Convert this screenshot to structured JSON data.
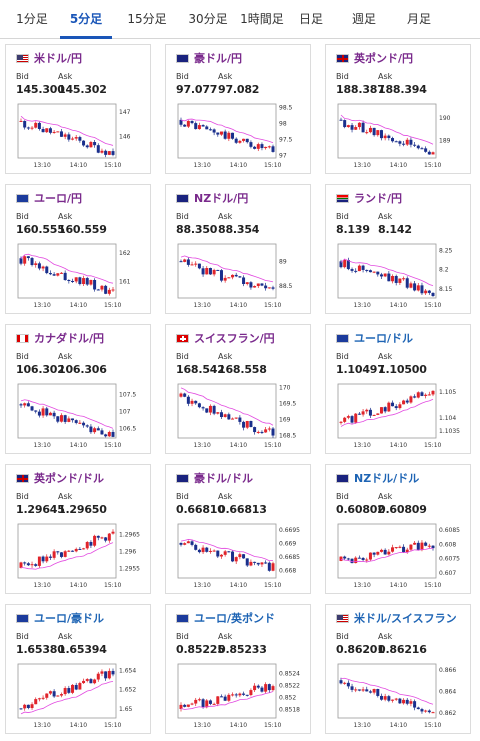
{
  "tabs": [
    {
      "label": "1分足",
      "active": false
    },
    {
      "label": "5分足",
      "active": true
    },
    {
      "label": "15分足",
      "active": false
    },
    {
      "label": "30分足",
      "active": false
    },
    {
      "label": "1時間足",
      "active": false
    },
    {
      "label": "日足",
      "active": false
    },
    {
      "label": "週足",
      "active": false
    },
    {
      "label": "月足",
      "active": false
    }
  ],
  "labels": {
    "bid": "Bid",
    "ask": "Ask"
  },
  "colors": {
    "up": "#e0242b",
    "down": "#1a2f8c",
    "ma": "#e24be0",
    "title_purple": "#7a2a8c",
    "title_blue": "#1e64b4",
    "active_tab": "#1a56b8"
  },
  "cards": [
    {
      "pair": "米ドル/円",
      "flag": "us",
      "bid": "145.300",
      "ask": "145.302",
      "y_ticks": [
        "147",
        "146"
      ],
      "x_ticks": [
        "13:10",
        "14:10",
        "15:10"
      ],
      "chart_data": {
        "type": "candlestick",
        "trend": "down",
        "ylim": [
          145.1,
          147.3
        ],
        "start": 146.6,
        "end": 145.3
      }
    },
    {
      "pair": "豪ドル/円",
      "flag": "au",
      "bid": "97.077",
      "ask": "97.082",
      "y_ticks": [
        "98.5",
        "98",
        "97.5",
        "97"
      ],
      "x_ticks": [
        "13:10",
        "14:10",
        "15:10"
      ],
      "chart_data": {
        "type": "candlestick",
        "trend": "down",
        "ylim": [
          96.9,
          98.6
        ],
        "start": 98.1,
        "end": 97.1
      }
    },
    {
      "pair": "英ポンド/円",
      "flag": "gb",
      "bid": "188.387",
      "ask": "188.394",
      "y_ticks": [
        "190",
        "189"
      ],
      "x_ticks": [
        "13:10",
        "14:10",
        "15:10"
      ],
      "chart_data": {
        "type": "candlestick",
        "trend": "down",
        "ylim": [
          188.2,
          190.6
        ],
        "start": 189.9,
        "end": 188.4
      }
    },
    {
      "pair": "ユーロ/円",
      "flag": "eu",
      "bid": "160.555",
      "ask": "160.559",
      "y_ticks": [
        "162",
        "161"
      ],
      "x_ticks": [
        "13:10",
        "14:10",
        "15:10"
      ],
      "chart_data": {
        "type": "candlestick",
        "trend": "down",
        "ylim": [
          160.4,
          162.3
        ],
        "start": 161.8,
        "end": 160.6
      }
    },
    {
      "pair": "NZドル/円",
      "flag": "nz",
      "bid": "88.350",
      "ask": "88.354",
      "y_ticks": [
        "89",
        "88.5"
      ],
      "x_ticks": [
        "13:10",
        "14:10",
        "15:10"
      ],
      "chart_data": {
        "type": "candlestick",
        "trend": "down",
        "ylim": [
          88.25,
          89.35
        ],
        "start": 89.0,
        "end": 88.35
      }
    },
    {
      "pair": "ランド/円",
      "flag": "za",
      "bid": "8.139",
      "ask": "8.142",
      "y_ticks": [
        "8.25",
        "8.2",
        "8.15"
      ],
      "x_ticks": [
        "13:10",
        "14:10",
        "15:10"
      ],
      "chart_data": {
        "type": "candlestick",
        "trend": "down",
        "ylim": [
          8.125,
          8.265
        ],
        "start": 8.22,
        "end": 8.14
      }
    },
    {
      "pair": "カナダドル/円",
      "flag": "ca",
      "bid": "106.302",
      "ask": "106.306",
      "y_ticks": [
        "107.5",
        "107",
        "106.5"
      ],
      "x_ticks": [
        "13:10",
        "14:10",
        "15:10"
      ],
      "chart_data": {
        "type": "candlestick",
        "trend": "down",
        "ylim": [
          106.2,
          107.8
        ],
        "start": 107.2,
        "end": 106.3
      }
    },
    {
      "pair": "スイスフラン/円",
      "flag": "ch",
      "bid": "168.542",
      "ask": "168.558",
      "y_ticks": [
        "170",
        "169.5",
        "169",
        "168.5"
      ],
      "x_ticks": [
        "13:10",
        "14:10",
        "15:10"
      ],
      "chart_data": {
        "type": "candlestick",
        "trend": "down",
        "ylim": [
          168.4,
          170.1
        ],
        "start": 169.7,
        "end": 168.5
      }
    },
    {
      "pair": "ユーロ/ドル",
      "flag": "eu",
      "bid": "1.10497",
      "ask": "1.10500",
      "y_ticks": [
        "1.105",
        "1.104",
        "1.1035"
      ],
      "x_ticks": [
        "13:10",
        "14:10",
        "15:10"
      ],
      "chart_data": {
        "type": "candlestick",
        "trend": "up",
        "ylim": [
          1.1032,
          1.1053
        ],
        "start": 1.1038,
        "end": 1.105
      }
    },
    {
      "pair": "英ポンド/ドル",
      "flag": "gb",
      "bid": "1.29645",
      "ask": "1.29650",
      "y_ticks": [
        "1.2965",
        "1.296",
        "1.2955"
      ],
      "x_ticks": [
        "13:10",
        "14:10",
        "15:10"
      ],
      "chart_data": {
        "type": "candlestick",
        "trend": "up",
        "ylim": [
          1.2952,
          1.2968
        ],
        "start": 1.2955,
        "end": 1.2965
      }
    },
    {
      "pair": "豪ドル/ドル",
      "flag": "au",
      "bid": "0.66810",
      "ask": "0.66813",
      "y_ticks": [
        "0.6695",
        "0.669",
        "0.6685",
        "0.668"
      ],
      "x_ticks": [
        "13:10",
        "14:10",
        "15:10"
      ],
      "chart_data": {
        "type": "candlestick",
        "trend": "mixed",
        "ylim": [
          0.6677,
          0.6697
        ],
        "start": 0.669,
        "end": 0.6681
      }
    },
    {
      "pair": "NZドル/ドル",
      "flag": "nz",
      "bid": "0.60802",
      "ask": "0.60809",
      "y_ticks": [
        "0.6085",
        "0.608",
        "0.6075",
        "0.607"
      ],
      "x_ticks": [
        "13:10",
        "14:10",
        "15:10"
      ],
      "chart_data": {
        "type": "candlestick",
        "trend": "up",
        "ylim": [
          0.6068,
          0.6087
        ],
        "start": 0.6074,
        "end": 0.608
      }
    },
    {
      "pair": "ユーロ/豪ドル",
      "flag": "eu",
      "bid": "1.65380",
      "ask": "1.65394",
      "y_ticks": [
        "1.654",
        "1.652",
        "1.65"
      ],
      "x_ticks": [
        "13:10",
        "14:10",
        "15:10"
      ],
      "chart_data": {
        "type": "candlestick",
        "trend": "up",
        "ylim": [
          1.649,
          1.6546
        ],
        "start": 1.65,
        "end": 1.6538
      }
    },
    {
      "pair": "ユーロ/英ポンド",
      "flag": "eu",
      "bid": "0.85225",
      "ask": "0.85233",
      "y_ticks": [
        "0.8524",
        "0.8522",
        "0.852",
        "0.8518"
      ],
      "x_ticks": [
        "13:10",
        "14:10",
        "15:10"
      ],
      "chart_data": {
        "type": "candlestick",
        "trend": "up",
        "ylim": [
          0.85165,
          0.85255
        ],
        "start": 0.8518,
        "end": 0.8522
      }
    },
    {
      "pair": "米ドル/スイスフラン",
      "flag": "us",
      "bid": "0.86201",
      "ask": "0.86216",
      "y_ticks": [
        "0.866",
        "0.864",
        "0.862"
      ],
      "x_ticks": [
        "13:10",
        "14:10",
        "15:10"
      ],
      "chart_data": {
        "type": "candlestick",
        "trend": "down",
        "ylim": [
          0.8615,
          0.8665
        ],
        "start": 0.865,
        "end": 0.862
      }
    }
  ]
}
